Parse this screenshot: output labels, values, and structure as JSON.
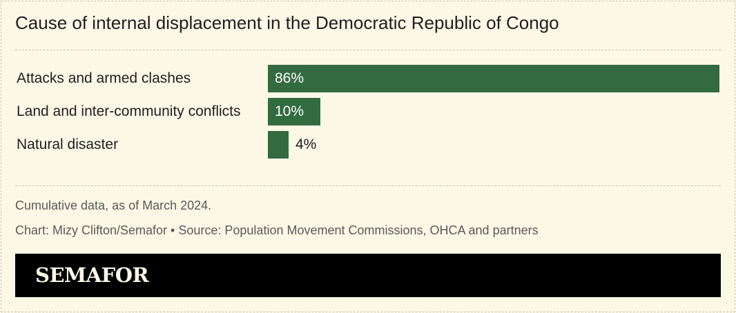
{
  "title": "Cause of internal displacement in the Democratic Republic of Congo",
  "chart_data": {
    "type": "bar",
    "orientation": "horizontal",
    "title": "Cause of internal displacement in the Democratic Republic of Congo",
    "categories": [
      "Attacks and armed clashes",
      "Land and inter-community conflicts",
      "Natural disaster"
    ],
    "values": [
      86,
      10,
      4
    ],
    "value_labels": [
      "86%",
      "10%",
      "4%"
    ],
    "unit": "%",
    "xlim": [
      0,
      86
    ],
    "xlabel": "",
    "ylabel": "",
    "grid": false,
    "bar_color": "#336b40"
  },
  "footer": {
    "note": "Cumulative data, as of March 2024.",
    "credit": "Chart: Mizy Clifton/Semafor • Source: Population Movement Commissions, OHCA and partners"
  },
  "brand": {
    "logo": "SEMAFOR"
  },
  "colors": {
    "background": "#fbf8e6",
    "bar": "#336b40",
    "brand_bar": "#000000"
  }
}
